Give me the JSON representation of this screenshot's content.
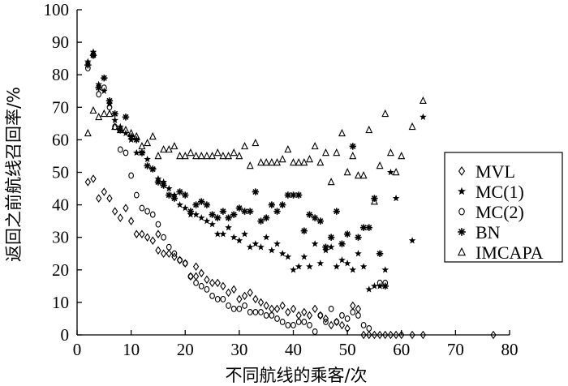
{
  "chart_data": {
    "type": "scatter",
    "xlabel": "不同航线的乘客/次",
    "ylabel": "返回之前航线召回率/%",
    "xlim": [
      0,
      80
    ],
    "ylim": [
      0,
      100
    ],
    "x_ticks": [
      0,
      10,
      20,
      30,
      40,
      50,
      60,
      70,
      80
    ],
    "y_ticks": [
      0,
      10,
      20,
      30,
      40,
      50,
      60,
      70,
      80,
      90,
      100
    ],
    "grid": false,
    "legend_position": "right",
    "series": [
      {
        "name": "MVL",
        "marker": "diamond",
        "points": [
          [
            2,
            47
          ],
          [
            3,
            48
          ],
          [
            4,
            42
          ],
          [
            5,
            44
          ],
          [
            6,
            42
          ],
          [
            7,
            38
          ],
          [
            8,
            36
          ],
          [
            9,
            39
          ],
          [
            10,
            35
          ],
          [
            11,
            31
          ],
          [
            12,
            31
          ],
          [
            13,
            30
          ],
          [
            14,
            29
          ],
          [
            15,
            31
          ],
          [
            15,
            26
          ],
          [
            16,
            25
          ],
          [
            17,
            25
          ],
          [
            18,
            24
          ],
          [
            19,
            23
          ],
          [
            20,
            22
          ],
          [
            21,
            18
          ],
          [
            22,
            18
          ],
          [
            22,
            21
          ],
          [
            23,
            19
          ],
          [
            24,
            17
          ],
          [
            25,
            16
          ],
          [
            26,
            16
          ],
          [
            27,
            15
          ],
          [
            28,
            13
          ],
          [
            29,
            14
          ],
          [
            30,
            11
          ],
          [
            31,
            12
          ],
          [
            32,
            13
          ],
          [
            33,
            11
          ],
          [
            34,
            10
          ],
          [
            35,
            9
          ],
          [
            36,
            8
          ],
          [
            37,
            8
          ],
          [
            38,
            9
          ],
          [
            39,
            7
          ],
          [
            40,
            8
          ],
          [
            41,
            6
          ],
          [
            42,
            7
          ],
          [
            43,
            6
          ],
          [
            44,
            8
          ],
          [
            45,
            6
          ],
          [
            46,
            5
          ],
          [
            47,
            3
          ],
          [
            48,
            4
          ],
          [
            49,
            3
          ],
          [
            50,
            2
          ],
          [
            51,
            9
          ],
          [
            52,
            8
          ],
          [
            53,
            0
          ],
          [
            54,
            0
          ],
          [
            55,
            0
          ],
          [
            56,
            0
          ],
          [
            57,
            0
          ],
          [
            58,
            0
          ],
          [
            59,
            0
          ],
          [
            60,
            0
          ],
          [
            62,
            0
          ],
          [
            64,
            0
          ],
          [
            77,
            0
          ]
        ]
      },
      {
        "name": "MC(1)",
        "marker": "star",
        "points": [
          [
            2,
            84
          ],
          [
            3,
            87
          ],
          [
            4,
            77
          ],
          [
            5,
            75
          ],
          [
            6,
            71
          ],
          [
            7,
            66
          ],
          [
            8,
            64
          ],
          [
            9,
            62
          ],
          [
            10,
            60
          ],
          [
            11,
            56
          ],
          [
            12,
            56
          ],
          [
            13,
            54
          ],
          [
            14,
            51
          ],
          [
            15,
            48
          ],
          [
            16,
            47
          ],
          [
            17,
            45
          ],
          [
            18,
            43
          ],
          [
            19,
            40
          ],
          [
            20,
            39
          ],
          [
            21,
            37
          ],
          [
            22,
            37
          ],
          [
            23,
            36
          ],
          [
            24,
            35
          ],
          [
            25,
            34
          ],
          [
            26,
            31
          ],
          [
            27,
            31
          ],
          [
            28,
            33
          ],
          [
            29,
            30
          ],
          [
            30,
            29
          ],
          [
            31,
            31
          ],
          [
            32,
            27
          ],
          [
            33,
            28
          ],
          [
            34,
            27
          ],
          [
            35,
            30
          ],
          [
            36,
            26
          ],
          [
            37,
            28
          ],
          [
            38,
            25
          ],
          [
            39,
            24
          ],
          [
            40,
            20
          ],
          [
            41,
            21
          ],
          [
            42,
            24
          ],
          [
            43,
            21
          ],
          [
            44,
            28
          ],
          [
            45,
            22
          ],
          [
            46,
            26
          ],
          [
            47,
            27
          ],
          [
            48,
            21
          ],
          [
            49,
            23
          ],
          [
            50,
            22
          ],
          [
            51,
            20
          ],
          [
            52,
            25
          ],
          [
            53,
            21
          ],
          [
            54,
            14
          ],
          [
            55,
            15
          ],
          [
            56,
            15
          ],
          [
            57,
            20
          ],
          [
            58,
            50
          ],
          [
            59,
            42
          ],
          [
            62,
            29
          ],
          [
            64,
            67
          ]
        ]
      },
      {
        "name": "MC(2)",
        "marker": "circle",
        "points": [
          [
            2,
            82
          ],
          [
            3,
            86
          ],
          [
            4,
            74
          ],
          [
            5,
            76
          ],
          [
            6,
            70
          ],
          [
            7,
            64
          ],
          [
            8,
            57
          ],
          [
            9,
            56
          ],
          [
            10,
            49
          ],
          [
            11,
            43
          ],
          [
            12,
            39
          ],
          [
            13,
            38
          ],
          [
            14,
            37
          ],
          [
            15,
            34
          ],
          [
            16,
            30
          ],
          [
            17,
            27
          ],
          [
            18,
            25
          ],
          [
            19,
            23
          ],
          [
            20,
            22
          ],
          [
            21,
            18
          ],
          [
            22,
            16
          ],
          [
            23,
            15
          ],
          [
            24,
            14
          ],
          [
            25,
            12
          ],
          [
            26,
            11
          ],
          [
            27,
            11
          ],
          [
            28,
            9
          ],
          [
            29,
            8
          ],
          [
            30,
            8
          ],
          [
            31,
            9
          ],
          [
            32,
            7
          ],
          [
            33,
            7
          ],
          [
            34,
            7
          ],
          [
            35,
            6
          ],
          [
            36,
            6
          ],
          [
            37,
            5
          ],
          [
            38,
            4
          ],
          [
            39,
            3
          ],
          [
            40,
            3
          ],
          [
            41,
            4
          ],
          [
            42,
            4
          ],
          [
            43,
            3
          ],
          [
            44,
            1
          ],
          [
            45,
            6
          ],
          [
            46,
            4
          ],
          [
            47,
            8
          ],
          [
            48,
            4
          ],
          [
            49,
            6
          ],
          [
            50,
            5
          ],
          [
            51,
            7
          ],
          [
            52,
            6
          ],
          [
            53,
            3
          ],
          [
            54,
            2
          ],
          [
            56,
            16
          ],
          [
            57,
            16
          ]
        ]
      },
      {
        "name": "BN",
        "marker": "asterisk",
        "points": [
          [
            2,
            83
          ],
          [
            3,
            86
          ],
          [
            4,
            76
          ],
          [
            5,
            79
          ],
          [
            6,
            72
          ],
          [
            7,
            68
          ],
          [
            8,
            63
          ],
          [
            9,
            67
          ],
          [
            10,
            61
          ],
          [
            11,
            60
          ],
          [
            12,
            56
          ],
          [
            13,
            52
          ],
          [
            14,
            51
          ],
          [
            15,
            47
          ],
          [
            16,
            46
          ],
          [
            17,
            43
          ],
          [
            18,
            42
          ],
          [
            19,
            44
          ],
          [
            20,
            43
          ],
          [
            21,
            38
          ],
          [
            22,
            40
          ],
          [
            23,
            41
          ],
          [
            24,
            40
          ],
          [
            25,
            37
          ],
          [
            26,
            36
          ],
          [
            27,
            38
          ],
          [
            28,
            36
          ],
          [
            29,
            37
          ],
          [
            30,
            39
          ],
          [
            31,
            38
          ],
          [
            32,
            38
          ],
          [
            33,
            44
          ],
          [
            34,
            35
          ],
          [
            35,
            36
          ],
          [
            36,
            40
          ],
          [
            37,
            38
          ],
          [
            38,
            40
          ],
          [
            39,
            43
          ],
          [
            40,
            43
          ],
          [
            41,
            43
          ],
          [
            42,
            32
          ],
          [
            43,
            37
          ],
          [
            44,
            36
          ],
          [
            45,
            35
          ],
          [
            46,
            27
          ],
          [
            47,
            30
          ],
          [
            48,
            38
          ],
          [
            49,
            28
          ],
          [
            50,
            31
          ],
          [
            51,
            58
          ],
          [
            52,
            30
          ],
          [
            53,
            33
          ],
          [
            54,
            33
          ],
          [
            55,
            42
          ],
          [
            56,
            25
          ],
          [
            57,
            15
          ]
        ]
      },
      {
        "name": "IMCAPA",
        "marker": "triangle",
        "points": [
          [
            2,
            62
          ],
          [
            3,
            69
          ],
          [
            4,
            67
          ],
          [
            5,
            68
          ],
          [
            6,
            68
          ],
          [
            7,
            64
          ],
          [
            8,
            63
          ],
          [
            9,
            63
          ],
          [
            10,
            62
          ],
          [
            11,
            61
          ],
          [
            12,
            58
          ],
          [
            13,
            59
          ],
          [
            14,
            61
          ],
          [
            15,
            55
          ],
          [
            16,
            57
          ],
          [
            17,
            57
          ],
          [
            18,
            58
          ],
          [
            19,
            55
          ],
          [
            20,
            55
          ],
          [
            21,
            56
          ],
          [
            22,
            55
          ],
          [
            23,
            55
          ],
          [
            24,
            55
          ],
          [
            25,
            55
          ],
          [
            26,
            56
          ],
          [
            27,
            55
          ],
          [
            28,
            55
          ],
          [
            29,
            56
          ],
          [
            30,
            55
          ],
          [
            31,
            58
          ],
          [
            32,
            52
          ],
          [
            33,
            59
          ],
          [
            34,
            53
          ],
          [
            35,
            53
          ],
          [
            36,
            53
          ],
          [
            37,
            53
          ],
          [
            38,
            54
          ],
          [
            39,
            57
          ],
          [
            40,
            53
          ],
          [
            41,
            53
          ],
          [
            42,
            53
          ],
          [
            43,
            54
          ],
          [
            44,
            58
          ],
          [
            45,
            53
          ],
          [
            46,
            56
          ],
          [
            47,
            47
          ],
          [
            48,
            56
          ],
          [
            49,
            62
          ],
          [
            50,
            50
          ],
          [
            51,
            55
          ],
          [
            52,
            49
          ],
          [
            53,
            49
          ],
          [
            54,
            63
          ],
          [
            55,
            41
          ],
          [
            56,
            52
          ],
          [
            57,
            68
          ],
          [
            58,
            56
          ],
          [
            59,
            50
          ],
          [
            60,
            55
          ],
          [
            62,
            64
          ],
          [
            64,
            72
          ]
        ]
      }
    ]
  }
}
